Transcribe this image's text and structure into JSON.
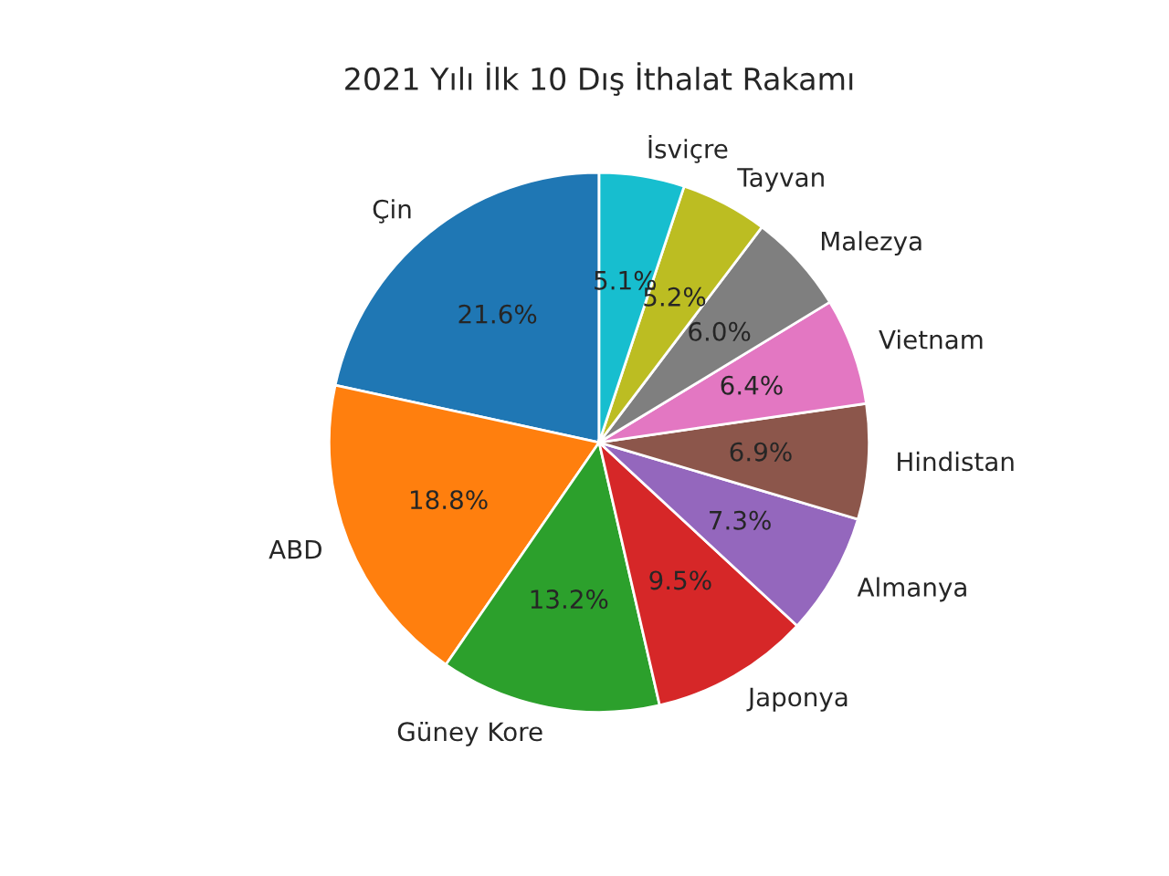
{
  "chart_data": {
    "type": "pie",
    "title": "2021 Yılı İlk 10 Dış İthalat Rakamı",
    "categories": [
      "Çin",
      "ABD",
      "Güney Kore",
      "Japonya",
      "Almanya",
      "Hindistan",
      "Vietnam",
      "Malezya",
      "Tayvan",
      "İsviçre"
    ],
    "values": [
      21.6,
      18.8,
      13.2,
      9.5,
      7.3,
      6.9,
      6.4,
      6.0,
      5.2,
      5.1
    ],
    "value_labels": [
      "21.6%",
      "18.8%",
      "13.2%",
      "9.5%",
      "7.3%",
      "6.9%",
      "6.4%",
      "6.0%",
      "5.2%",
      "5.1%"
    ],
    "colors": [
      "#1f77b4",
      "#ff7f0e",
      "#2ca02c",
      "#d62728",
      "#9467bd",
      "#8c564b",
      "#e377c2",
      "#7f7f7f",
      "#bcbd22",
      "#17becf"
    ],
    "legend": false
  }
}
